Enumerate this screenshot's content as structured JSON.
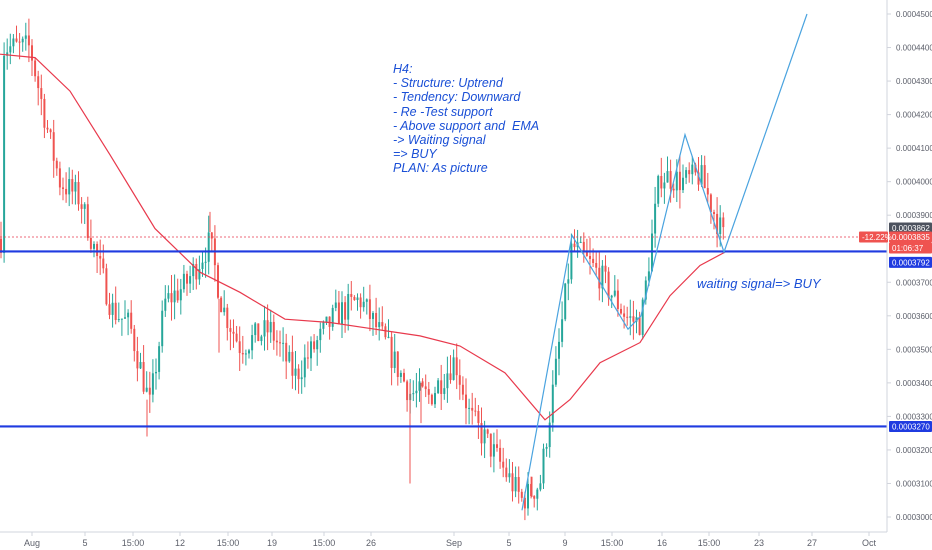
{
  "chart_data": {
    "type": "candlestick",
    "timeframe": "H4",
    "y_axis": {
      "ticks": [
        "0.0004500",
        "0.0004400",
        "0.0004300",
        "0.0004200",
        "0.0004100",
        "0.0004000",
        "0.0003900",
        "0.0003700",
        "0.0003600",
        "0.0003500",
        "0.0003400",
        "0.0003300",
        "0.0003200",
        "0.0003100",
        "0.0003000"
      ],
      "ylim": [
        0.000296,
        0.000453
      ]
    },
    "x_axis": {
      "ticks": [
        "Aug",
        "5",
        "15:00",
        "12",
        "15:00",
        "19",
        "15:00",
        "26",
        "Sep",
        "5",
        "9",
        "15:00",
        "16",
        "15:00",
        "23",
        "27",
        "Oct"
      ]
    },
    "price_tags": {
      "upper": "0.0003862",
      "change": "-12.22%",
      "last_price": "0.0003835",
      "countdown": "01:06:37",
      "support_high": "0.0003792",
      "support_low": "0.0003270"
    },
    "levels": [
      {
        "name": "support-high",
        "value": 0.0003792,
        "color": "#1f3be0"
      },
      {
        "name": "support-low",
        "value": 0.000327,
        "color": "#1f3be0"
      }
    ],
    "colors": {
      "up": "#26a69a",
      "down": "#ef5350",
      "ema": "#e8394c",
      "projection": "#4aa3df",
      "support": "#1f3be0"
    },
    "ema": [
      [
        0,
        0.000438
      ],
      [
        35,
        0.000437
      ],
      [
        70,
        0.000427
      ],
      [
        110,
        0.000408
      ],
      [
        155,
        0.000386
      ],
      [
        200,
        0.000373
      ],
      [
        240,
        0.000367
      ],
      [
        285,
        0.000359
      ],
      [
        330,
        0.000358
      ],
      [
        375,
        0.000356
      ],
      [
        420,
        0.000354
      ],
      [
        460,
        0.000351
      ],
      [
        505,
        0.000343
      ],
      [
        545,
        0.000329
      ],
      [
        570,
        0.000335
      ],
      [
        600,
        0.000346
      ],
      [
        640,
        0.000352
      ],
      [
        670,
        0.000366
      ],
      [
        700,
        0.000375
      ],
      [
        725,
        0.000379
      ]
    ],
    "projection_path": [
      [
        522,
        0.000302
      ],
      [
        572,
        0.000384
      ],
      [
        628,
        0.000356
      ],
      [
        641,
        0.00036
      ],
      [
        685,
        0.000414
      ],
      [
        724,
        0.000379
      ],
      [
        807,
        0.00045
      ]
    ],
    "annotations": {
      "plan_lines": [
        "H4:",
        "- Structure: Uptrend",
        "- Tendency: Downward",
        "- Re -Test support",
        "- Above support and  EMA",
        "-> Waiting signal",
        "=> BUY",
        "PLAN: As picture"
      ],
      "waiting_label": "waiting signal=> BUY"
    }
  }
}
